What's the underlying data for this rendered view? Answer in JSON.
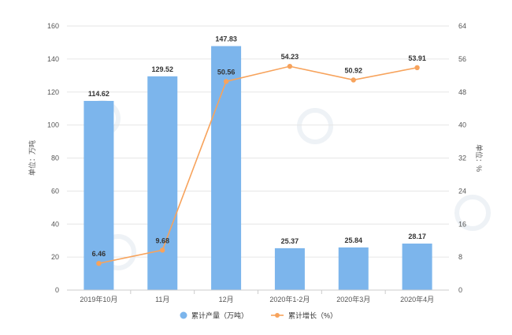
{
  "chart_data": {
    "type": "bar",
    "title": "",
    "categories": [
      "2019年10月",
      "11月",
      "12月",
      "2020年1-2月",
      "2020年3月",
      "2020年4月"
    ],
    "series": [
      {
        "name": "累计产量（万吨）",
        "type": "bar",
        "axis": "left",
        "values": [
          114.62,
          129.52,
          147.83,
          25.37,
          25.84,
          28.17
        ],
        "labels": [
          "114.62",
          "129.52",
          "147.83",
          "25.37",
          "25.84",
          "28.17"
        ],
        "color": "#7cb5ec"
      },
      {
        "name": "累计增长（%）",
        "type": "line",
        "axis": "right",
        "values": [
          6.46,
          9.68,
          50.56,
          54.23,
          50.92,
          53.91
        ],
        "labels": [
          "6.46",
          "9.68",
          "50.56",
          "54.23",
          "50.92",
          "53.91"
        ],
        "color": "#f7a35c"
      }
    ],
    "y_left": {
      "label": "单位：万吨",
      "min": 0,
      "max": 160,
      "ticks": [
        "0",
        "20",
        "40",
        "60",
        "80",
        "100",
        "120",
        "140",
        "160"
      ]
    },
    "y_right": {
      "label": "单位：%",
      "min": 0,
      "max": 64,
      "ticks": [
        "0",
        "8",
        "16",
        "24",
        "32",
        "40",
        "48",
        "56",
        "64"
      ]
    },
    "grid": true,
    "legend": "bottom-center"
  }
}
